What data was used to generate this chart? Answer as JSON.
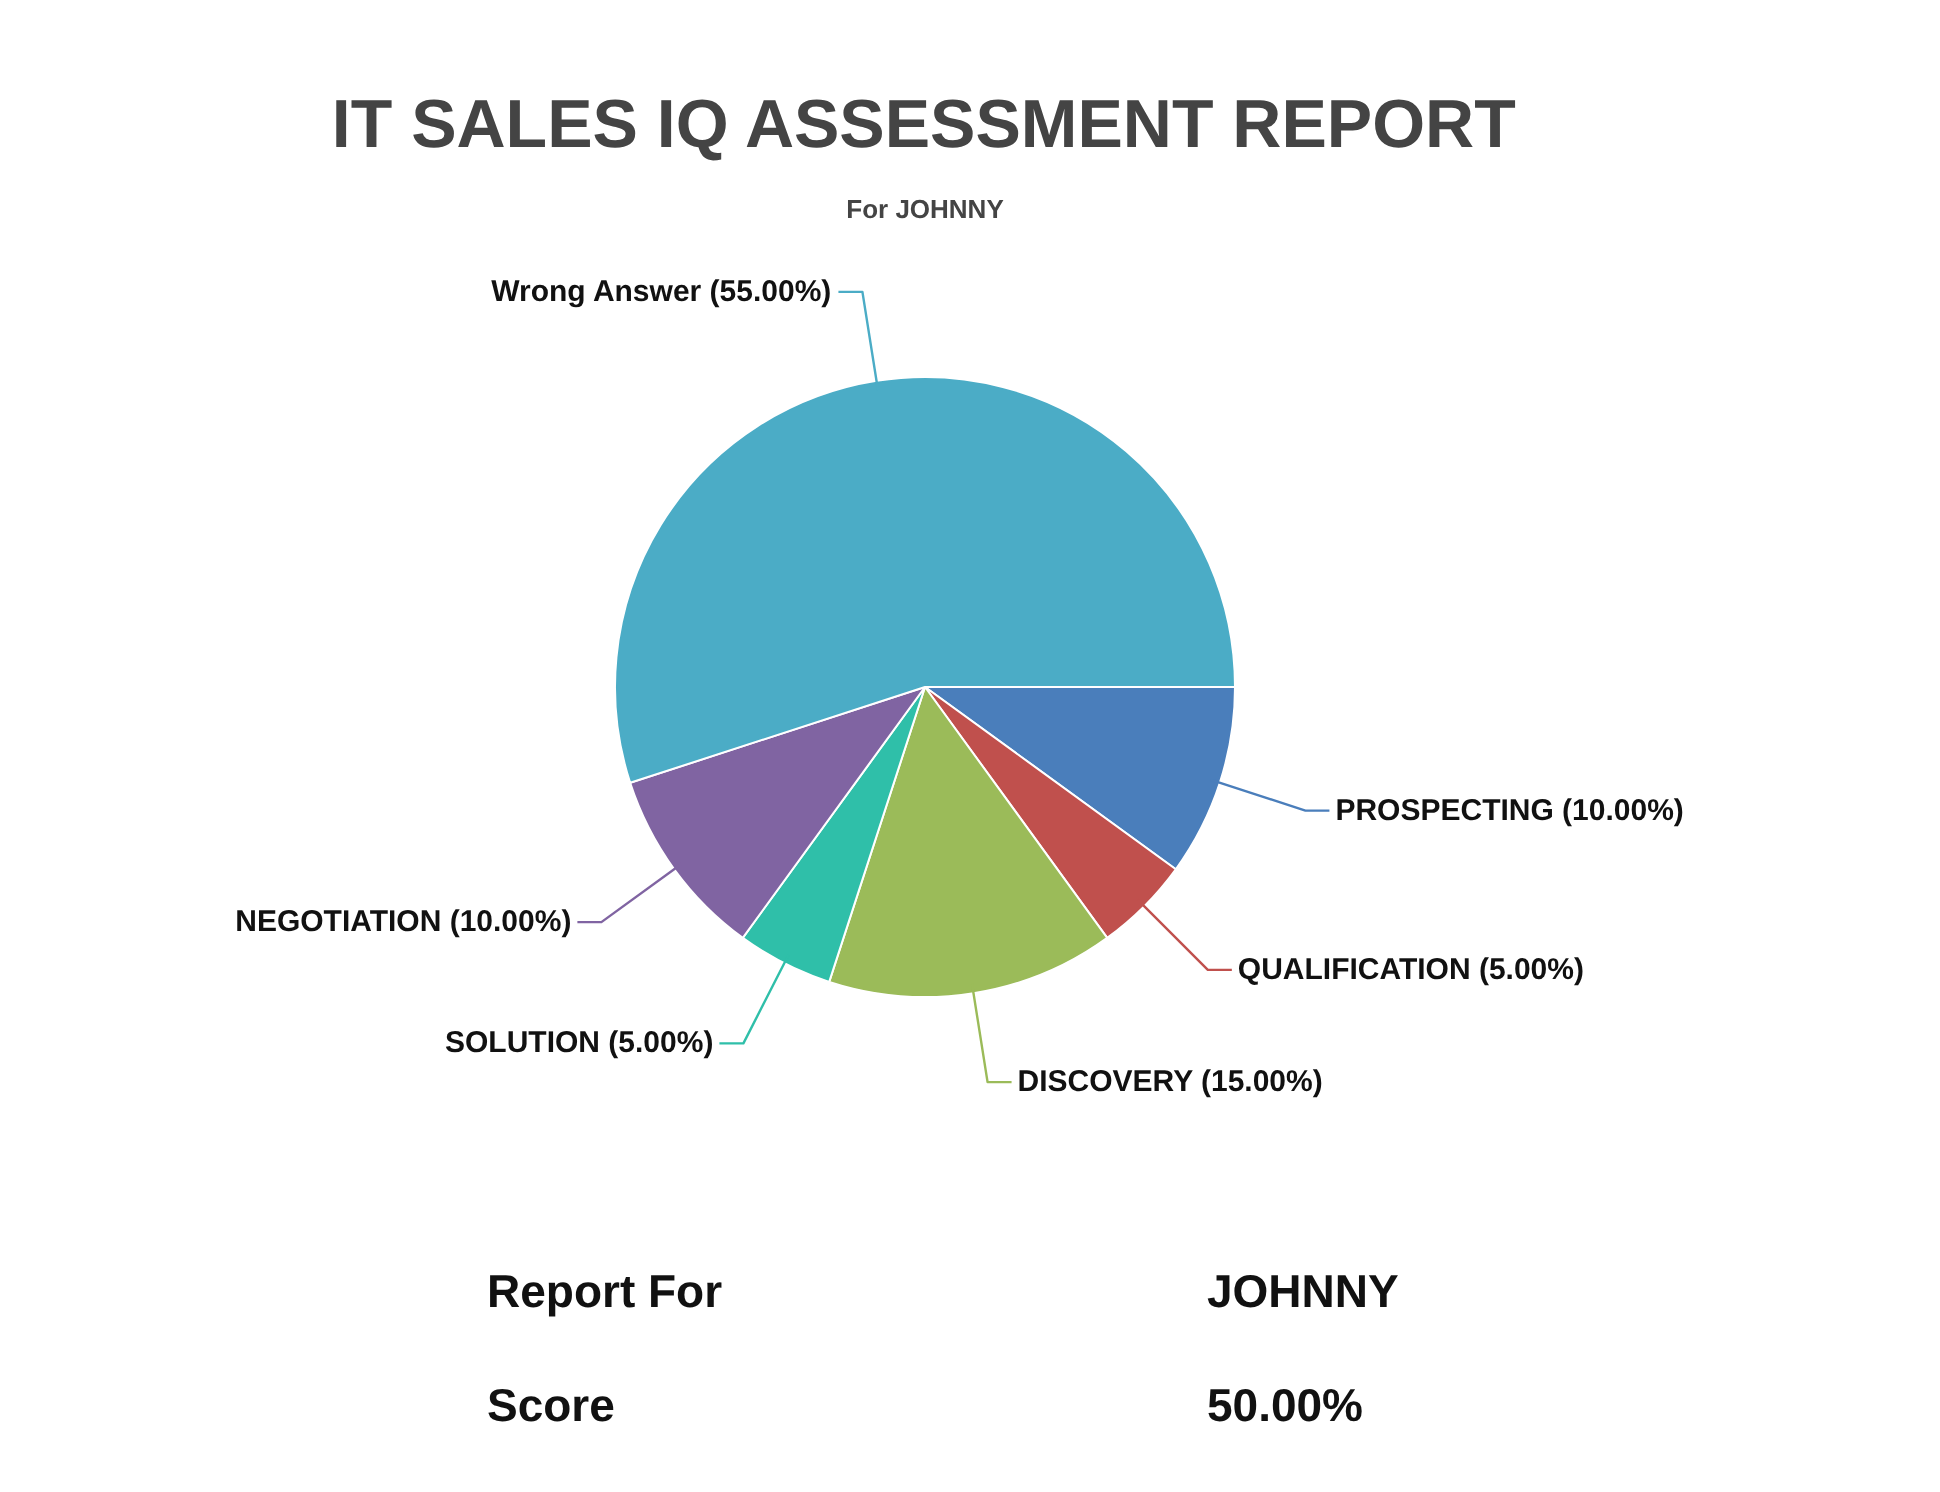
{
  "chart_data": {
    "type": "pie",
    "title": "IT SALES IQ ASSESSMENT REPORT",
    "subtitle": "For JOHNNY",
    "categories": [
      "PROSPECTING",
      "QUALIFICATION",
      "DISCOVERY",
      "SOLUTION",
      "NEGOTIATION",
      "Wrong Answer"
    ],
    "values": [
      10,
      5,
      15,
      5,
      10,
      55
    ],
    "value_labels": [
      "(10.00%)",
      "(5.00%)",
      "(15.00%)",
      "(5.00%)",
      "(10.00%)",
      "(55.00%)"
    ],
    "colors": [
      "#4a7ebb",
      "#c0504d",
      "#9bbb59",
      "#2fbfa9",
      "#8064a2",
      "#4bacc6"
    ],
    "annotations": [
      "Report For",
      "JOHNNY",
      "Score",
      "50.00%"
    ]
  }
}
